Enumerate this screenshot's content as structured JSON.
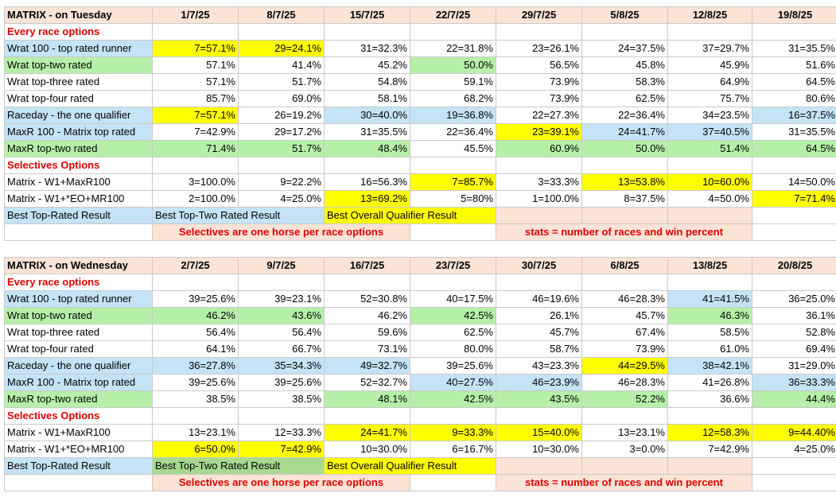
{
  "tuesday": {
    "title": "MATRIX - on Tuesday",
    "dates": [
      "1/7/25",
      "8/7/25",
      "15/7/25",
      "22/7/25",
      "29/7/25",
      "5/8/25",
      "12/8/25",
      "19/8/25"
    ],
    "section1": "Every race options",
    "rows": [
      {
        "label": "Wrat 100 - top rated runner",
        "rowcolor": "blue",
        "cells": [
          "7=57.1%",
          "29=24.1%",
          "31=32.3%",
          "22=31.8%",
          "23=26.1%",
          "24=37.5%",
          "37=29.7%",
          "31=35.5%"
        ],
        "yellow": [
          0,
          1
        ]
      },
      {
        "label": "Wrat top-two rated",
        "rowcolor": "green",
        "cells": [
          "57.1%",
          "41.4%",
          "45.2%",
          "50.0%",
          "56.5%",
          "45.8%",
          "45.9%",
          "51.6%"
        ],
        "greencells": [
          3
        ]
      },
      {
        "label": "Wrat top-three rated",
        "rowcolor": "",
        "cells": [
          "57.1%",
          "51.7%",
          "54.8%",
          "59.1%",
          "73.9%",
          "58.3%",
          "64.9%",
          "64.5%"
        ]
      },
      {
        "label": "Wrat top-four rated",
        "rowcolor": "",
        "cells": [
          "85.7%",
          "69.0%",
          "58.1%",
          "68.2%",
          "73.9%",
          "62.5%",
          "75.7%",
          "80.6%"
        ]
      },
      {
        "label": "Raceday - the one qualifier",
        "rowcolor": "blue",
        "cells": [
          "7=57.1%",
          "26=19.2%",
          "30=40.0%",
          "19=36.8%",
          "22=27.3%",
          "22=36.4%",
          "34=23.5%",
          "16=37.5%"
        ],
        "yellow": [
          0
        ],
        "bluecells": [
          2,
          3,
          7
        ]
      },
      {
        "label": "MaxR 100 - Matrix top rated",
        "rowcolor": "blue",
        "cells": [
          "7=42.9%",
          "29=17.2%",
          "31=35.5%",
          "22=36.4%",
          "23=39.1%",
          "24=41.7%",
          "37=40.5%",
          "31=35.5%"
        ],
        "yellow": [
          4
        ],
        "bluecells": [
          5,
          6
        ]
      },
      {
        "label": "MaxR top-two rated",
        "rowcolor": "green",
        "cells": [
          "71.4%",
          "51.7%",
          "48.4%",
          "45.5%",
          "60.9%",
          "50.0%",
          "51.4%",
          "64.5%"
        ],
        "greencells": [
          0,
          1,
          2,
          4,
          5,
          6,
          7
        ]
      }
    ],
    "section2": "Selectives Options",
    "sel": [
      {
        "label": "Matrix - W1+MaxR100",
        "cells": [
          "3=100.0%",
          "9=22.2%",
          "16=56.3%",
          "7=85.7%",
          "3=33.3%",
          "13=53.8%",
          "10=60.0%",
          "14=50.0%"
        ],
        "yellow": [
          3,
          5,
          6
        ]
      },
      {
        "label": "Matrix - W1+*EO+MR100",
        "cells": [
          "2=100.0%",
          "4=25.0%",
          "13=69.2%",
          "5=80%",
          "1=100.0%",
          "8=37.5%",
          "4=50.0%",
          "7=71.4%"
        ],
        "yellow": [
          2,
          7
        ]
      }
    ],
    "legend": {
      "top": "Best Top-Rated Result",
      "two": "Best Top-Two Rated Result",
      "overall": "Best Overall Qualifier Result"
    },
    "note1": "Selectives are one horse per race options",
    "note2": "stats = number of races and win percent"
  },
  "wednesday": {
    "title": "MATRIX - on Wednesday",
    "dates": [
      "2/7/25",
      "9/7/25",
      "16/7/25",
      "23/7/25",
      "30/7/25",
      "6/8/25",
      "13/8/25",
      "20/8/25"
    ],
    "section1": "Every race options",
    "rows": [
      {
        "label": "Wrat 100 - top rated runner",
        "rowcolor": "blue",
        "cells": [
          "39=25.6%",
          "39=23.1%",
          "52=30.8%",
          "40=17.5%",
          "46=19.6%",
          "46=28.3%",
          "41=41.5%",
          "36=25.0%"
        ],
        "bluecells": [
          6
        ]
      },
      {
        "label": "Wrat top-two rated",
        "rowcolor": "green",
        "cells": [
          "46.2%",
          "43.6%",
          "46.2%",
          "42.5%",
          "26.1%",
          "45.7%",
          "46.3%",
          "36.1%"
        ],
        "greencells": [
          0,
          1,
          3,
          6
        ]
      },
      {
        "label": "Wrat top-three rated",
        "rowcolor": "",
        "cells": [
          "56.4%",
          "56.4%",
          "59.6%",
          "62.5%",
          "45.7%",
          "67.4%",
          "58.5%",
          "52.8%"
        ]
      },
      {
        "label": "Wrat top-four rated",
        "rowcolor": "",
        "cells": [
          "64.1%",
          "66.7%",
          "73.1%",
          "80.0%",
          "58.7%",
          "73.9%",
          "61.0%",
          "69.4%"
        ]
      },
      {
        "label": "Raceday - the one qualifier",
        "rowcolor": "blue",
        "cells": [
          "36=27.8%",
          "35=34.3%",
          "49=32.7%",
          "39=25.6%",
          "43=23.3%",
          "44=29.5%",
          "38=42.1%",
          "31=29.0%"
        ],
        "yellow": [
          5
        ],
        "bluecells": [
          0,
          1,
          2,
          6
        ]
      },
      {
        "label": "MaxR 100 - Matrix top rated",
        "rowcolor": "blue",
        "cells": [
          "39=25.6%",
          "39=25.6%",
          "52=32.7%",
          "40=27.5%",
          "46=23.9%",
          "46=28.3%",
          "41=26.8%",
          "36=33.3%"
        ],
        "bluecells": [
          3,
          4,
          7
        ]
      },
      {
        "label": "MaxR top-two rated",
        "rowcolor": "green",
        "cells": [
          "38.5%",
          "38.5%",
          "48.1%",
          "42.5%",
          "43.5%",
          "52.2%",
          "36.6%",
          "44.4%"
        ],
        "greencells": [
          2,
          3,
          4,
          5,
          7
        ]
      }
    ],
    "section2": "Selectives Options",
    "sel": [
      {
        "label": "Matrix - W1+MaxR100",
        "cells": [
          "13=23.1%",
          "12=33.3%",
          "24=41.7%",
          "9=33.3%",
          "15=40.0%",
          "13=23.1%",
          "12=58.3%",
          "9=44.40%"
        ],
        "yellow": [
          2,
          3,
          4,
          6,
          7
        ]
      },
      {
        "label": "Matrix - W1+*EO+MR100",
        "cells": [
          "6=50.0%",
          "7=42.9%",
          "10=30.0%",
          "6=16.7%",
          "10=30.0%",
          "3=0.0%",
          "7=42.9%",
          "4=25.0%"
        ],
        "yellow": [
          0,
          1
        ]
      }
    ],
    "legend": {
      "top": "Best Top-Rated Result",
      "two": "Best Top-Two Rated Result",
      "overall": "Best Overall Qualifier Result"
    },
    "note1": "Selectives are one horse per race options",
    "note2": "stats = number of races and win percent"
  }
}
